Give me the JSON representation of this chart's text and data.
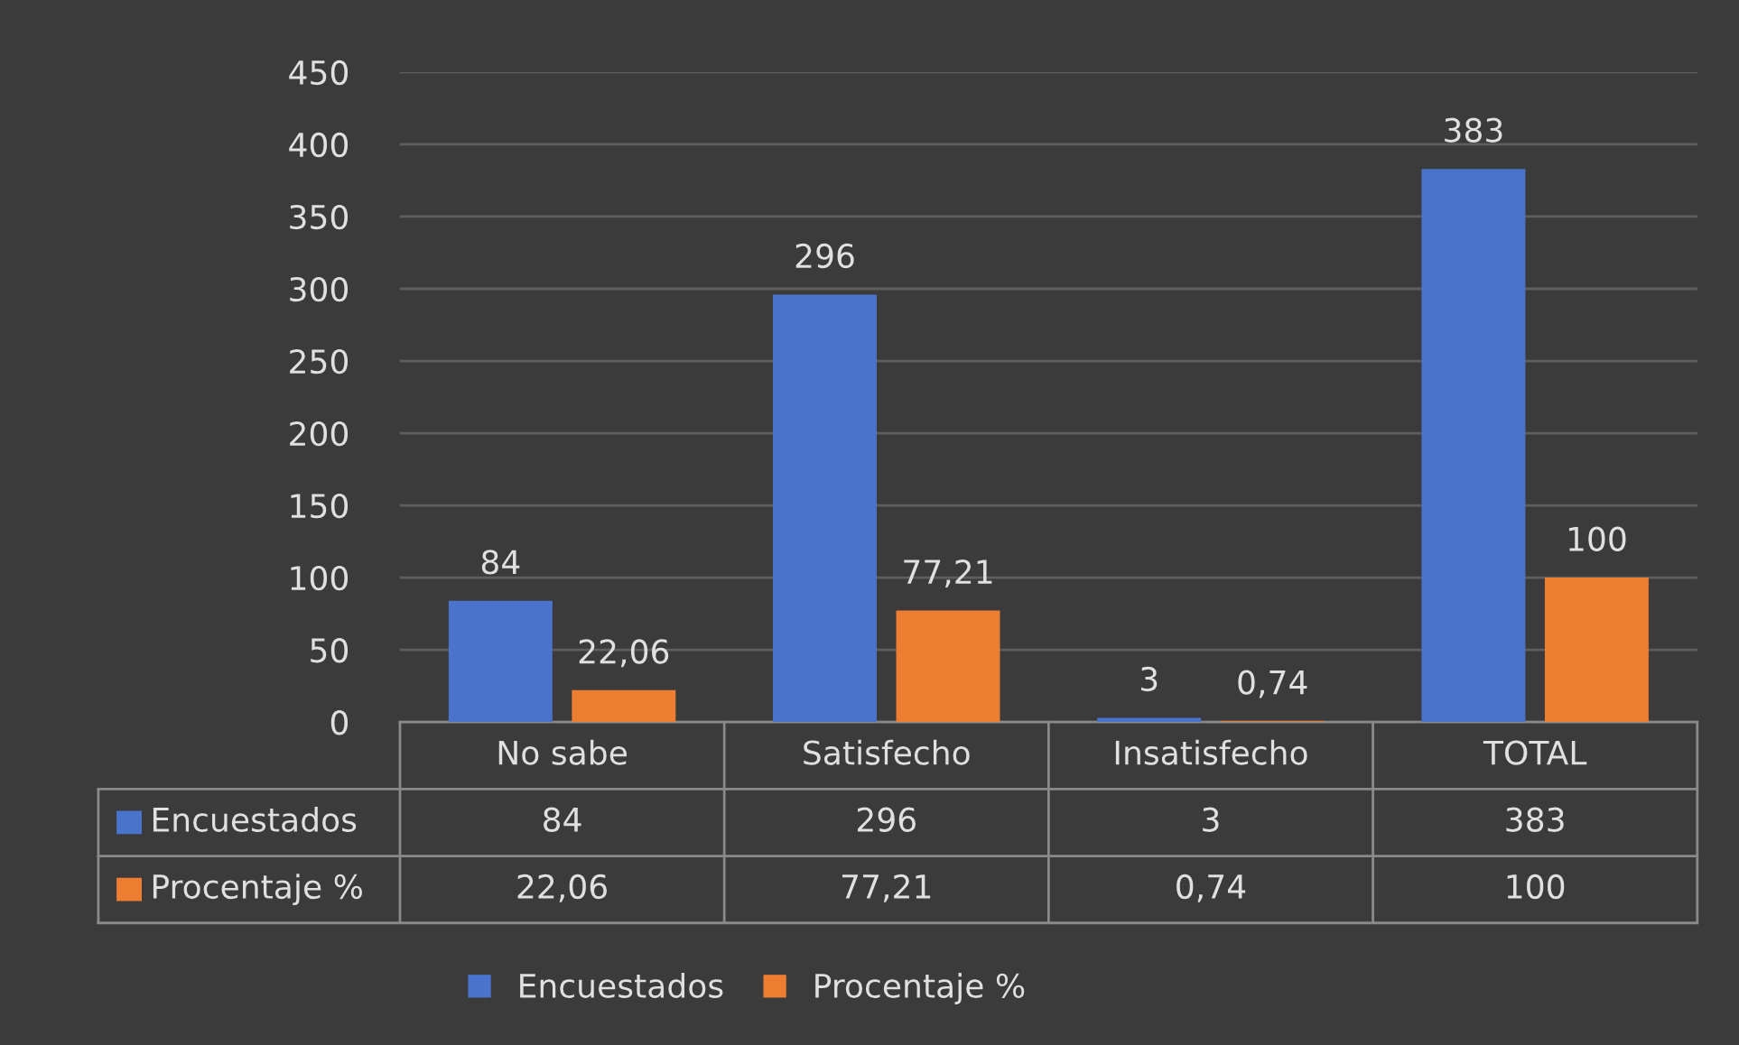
{
  "chart_data": {
    "type": "bar",
    "categories": [
      "No sabe",
      "Satisfecho",
      "Insatisfecho",
      "TOTAL"
    ],
    "series": [
      {
        "name": "Encuestados",
        "color": "#4a74cc",
        "values": [
          84,
          296,
          3,
          383
        ],
        "value_labels": [
          "84",
          "296",
          "3",
          "383"
        ]
      },
      {
        "name": "Procentaje %",
        "color": "#ed7d31",
        "values": [
          22.06,
          77.21,
          0.74,
          100
        ],
        "value_labels": [
          "22,06",
          "77,21",
          "0,74",
          "100"
        ]
      }
    ],
    "ylim": [
      0,
      450
    ],
    "yticks": [
      0,
      50,
      100,
      150,
      200,
      250,
      300,
      350,
      400,
      450
    ],
    "grid": "y",
    "legend": "bottom"
  }
}
